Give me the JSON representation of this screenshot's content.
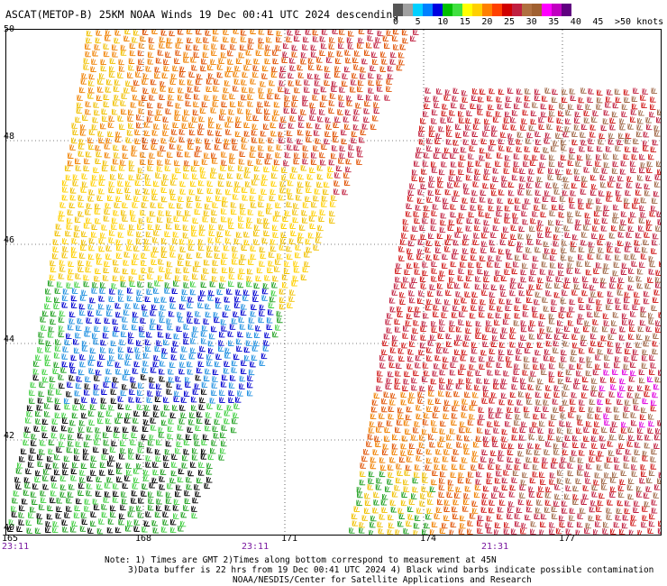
{
  "title": "ASCAT(METOP-B) 25KM NOAA Winds 19 Dec 00:41 UTC 2024 descending",
  "legend": {
    "colors": [
      "#555555",
      "#a0a0a0",
      "#00d0ff",
      "#0080ff",
      "#0000e0",
      "#00c000",
      "#40e040",
      "#ffff00",
      "#ffd000",
      "#ff8000",
      "#ff4000",
      "#d00000",
      "#c02040",
      "#b07040",
      "#a06030",
      "#ff00ff",
      "#c000c0",
      "#600080"
    ],
    "labels": [
      "0",
      "5",
      "10",
      "15",
      "20",
      "25",
      "30",
      "35",
      "40",
      "45",
      ">50 knots"
    ]
  },
  "map": {
    "lat_labels": [
      "50",
      "48",
      "46",
      "44",
      "42",
      "40"
    ],
    "lon_labels": [
      "165",
      "168",
      "171",
      "174",
      "177"
    ],
    "time_labels": [
      "23:11",
      "23:11",
      "21:31"
    ]
  },
  "notes": {
    "line1": "Note: 1) Times are GMT 2)Times along bottom correspond to measurement at 45N",
    "line2": "3)Data buffer is 22 hrs from 19 Dec 00:41 UTC 2024 4) Black wind barbs indicate possible contamination",
    "line3": "NOAA/NESDIS/Center for Satellite Applications and Research"
  }
}
